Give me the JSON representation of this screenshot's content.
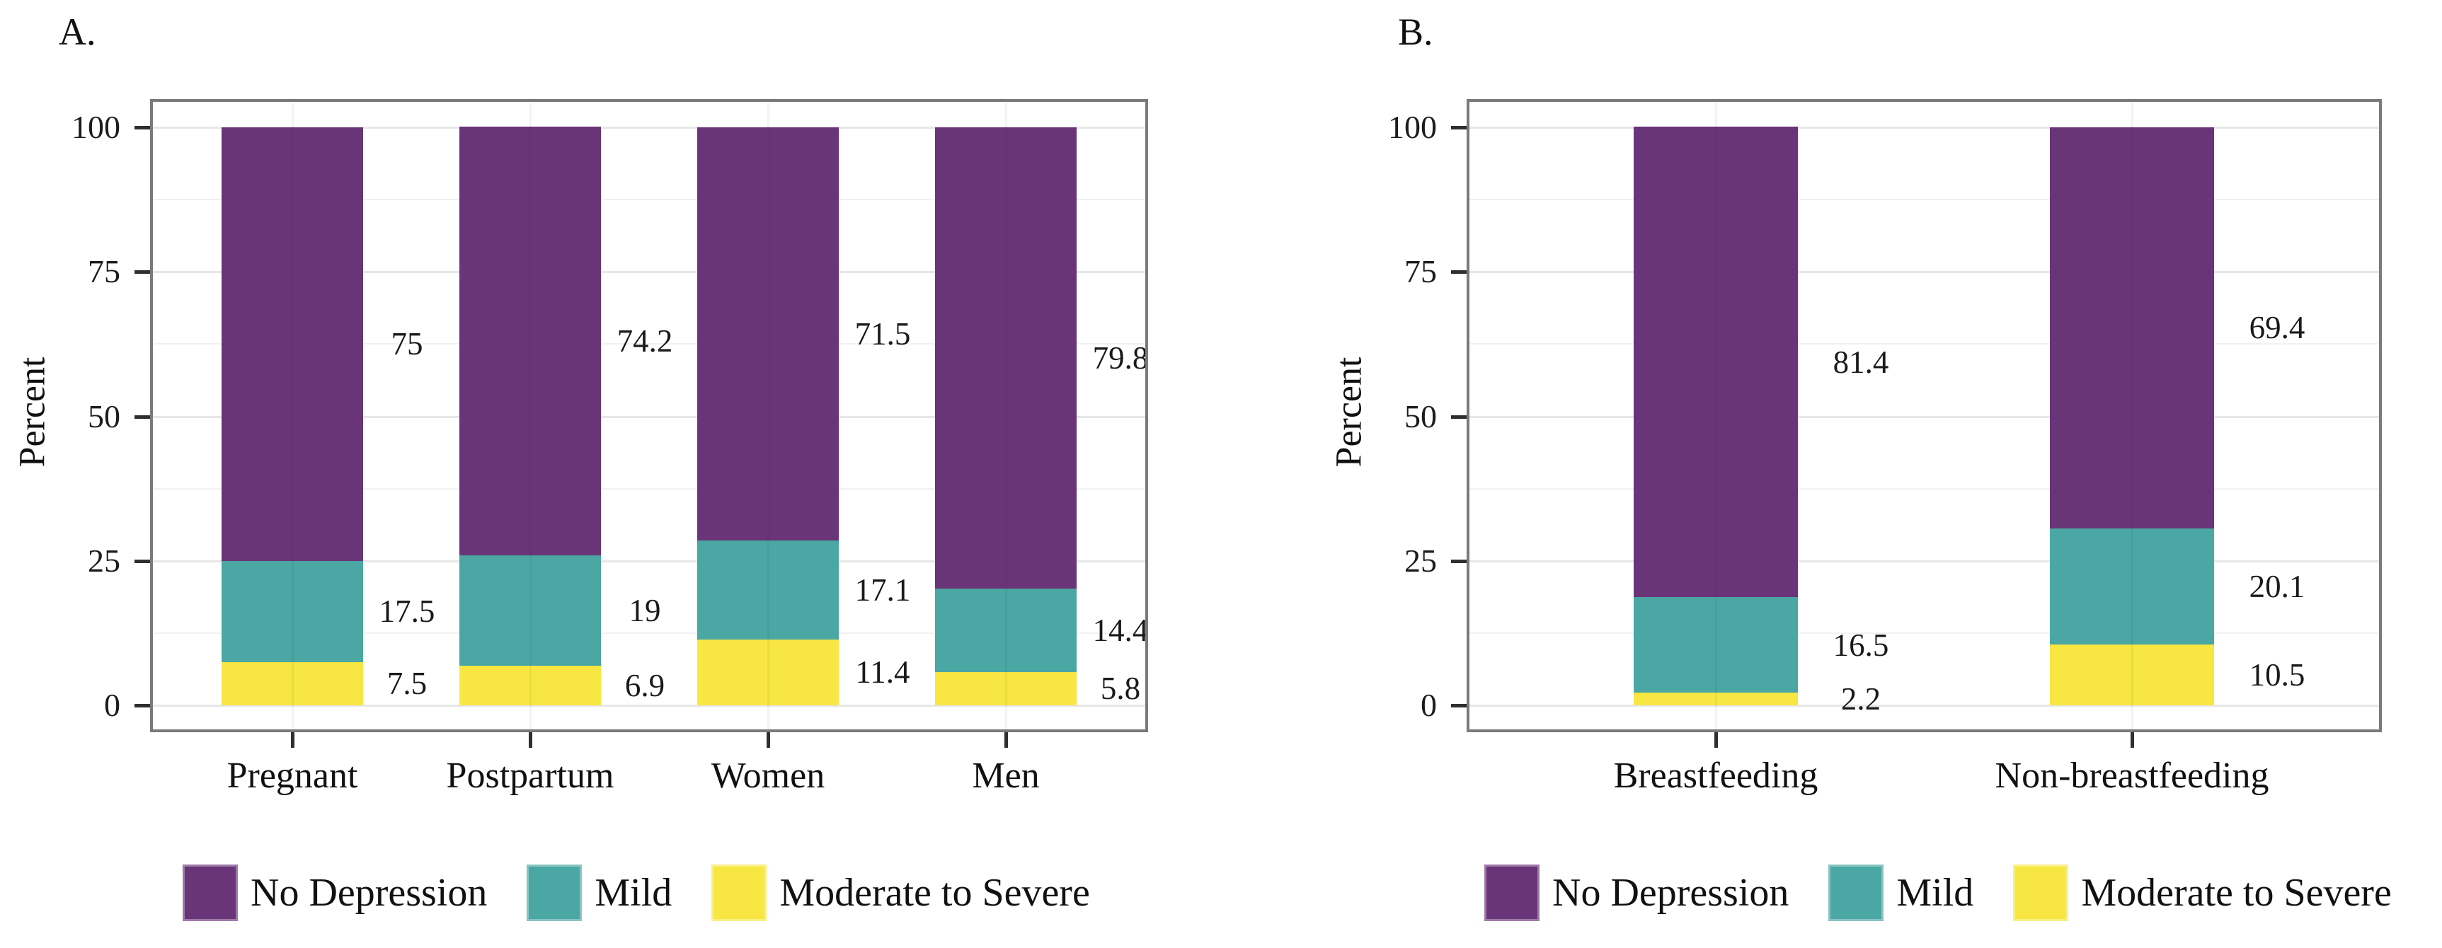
{
  "figure": {
    "background": "#ffffff",
    "text_color": "#111111",
    "frame_color": "#7a7a7a",
    "grid_major_color": "#e7e7e7",
    "grid_minor_color": "#f1f1f1"
  },
  "legend": {
    "items": [
      {
        "label": "No Depression",
        "color": "#6a3478"
      },
      {
        "label": "Mild",
        "color": "#4aa7a3"
      },
      {
        "label": "Moderate to Severe",
        "color": "#f8e642"
      }
    ]
  },
  "chart_data": [
    {
      "type": "bar",
      "stacked": true,
      "panel_label": "A.",
      "title": "",
      "xlabel": "",
      "ylabel": "Percent",
      "ylim": [
        0,
        100
      ],
      "yticks": [
        0,
        25,
        50,
        75,
        100
      ],
      "minor_gridlines": [
        12.5,
        37.5,
        62.5,
        87.5
      ],
      "grid": "on",
      "legend_position": "bottom",
      "categories": [
        "Pregnant",
        "Postpartum",
        "Women",
        "Men"
      ],
      "series": [
        {
          "name": "No Depression",
          "values": [
            75,
            74.2,
            71.5,
            79.8
          ],
          "labels": [
            "75",
            "74.2",
            "71.5",
            "79.8"
          ]
        },
        {
          "name": "Mild",
          "values": [
            17.5,
            19,
            17.1,
            14.4
          ],
          "labels": [
            "17.5",
            "19",
            "17.1",
            "14.4"
          ]
        },
        {
          "name": "Moderate to Severe",
          "values": [
            7.5,
            6.9,
            11.4,
            5.8
          ],
          "labels": [
            "7.5",
            "6.9",
            "11.4",
            "5.8"
          ]
        }
      ]
    },
    {
      "type": "bar",
      "stacked": true,
      "panel_label": "B.",
      "title": "",
      "xlabel": "",
      "ylabel": "Percent",
      "ylim": [
        0,
        100
      ],
      "yticks": [
        0,
        25,
        50,
        75,
        100
      ],
      "minor_gridlines": [
        12.5,
        37.5,
        62.5,
        87.5
      ],
      "grid": "on",
      "legend_position": "bottom",
      "categories": [
        "Breastfeeding",
        "Non-breastfeeding"
      ],
      "series": [
        {
          "name": "No Depression",
          "values": [
            81.4,
            69.4
          ],
          "labels": [
            "81.4",
            "69.4"
          ]
        },
        {
          "name": "Mild",
          "values": [
            16.5,
            20.1
          ],
          "labels": [
            "16.5",
            "20.1"
          ]
        },
        {
          "name": "Moderate to Severe",
          "values": [
            2.2,
            10.5
          ],
          "labels": [
            "2.2",
            "10.5"
          ]
        }
      ]
    }
  ]
}
